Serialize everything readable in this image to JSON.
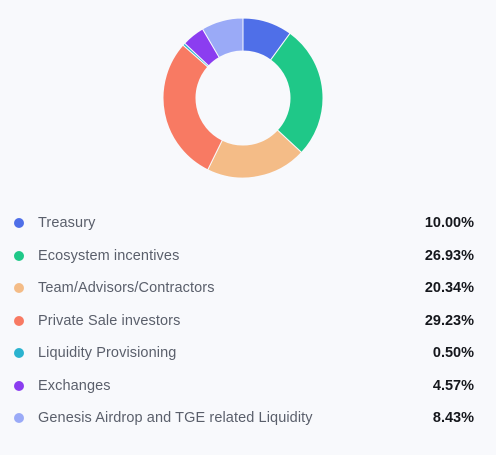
{
  "chart_data": {
    "type": "pie",
    "donut": true,
    "legend_position": "bottom",
    "categories": [
      "Treasury",
      "Ecosystem incentives",
      "Team/Advisors/Contractors",
      "Private Sale investors",
      "Liquidity Provisioning",
      "Exchanges",
      "Genesis Airdrop and TGE related Liquidity"
    ],
    "values": [
      10.0,
      26.93,
      20.34,
      29.23,
      0.5,
      4.57,
      8.43
    ],
    "value_labels": [
      "10.00%",
      "26.93%",
      "20.34%",
      "29.23%",
      "0.50%",
      "4.57%",
      "8.43%"
    ],
    "colors": [
      "#4f6fe8",
      "#1fc888",
      "#f4bc87",
      "#f87a63",
      "#2bb3cf",
      "#8b3df0",
      "#9aaaf7"
    ]
  }
}
